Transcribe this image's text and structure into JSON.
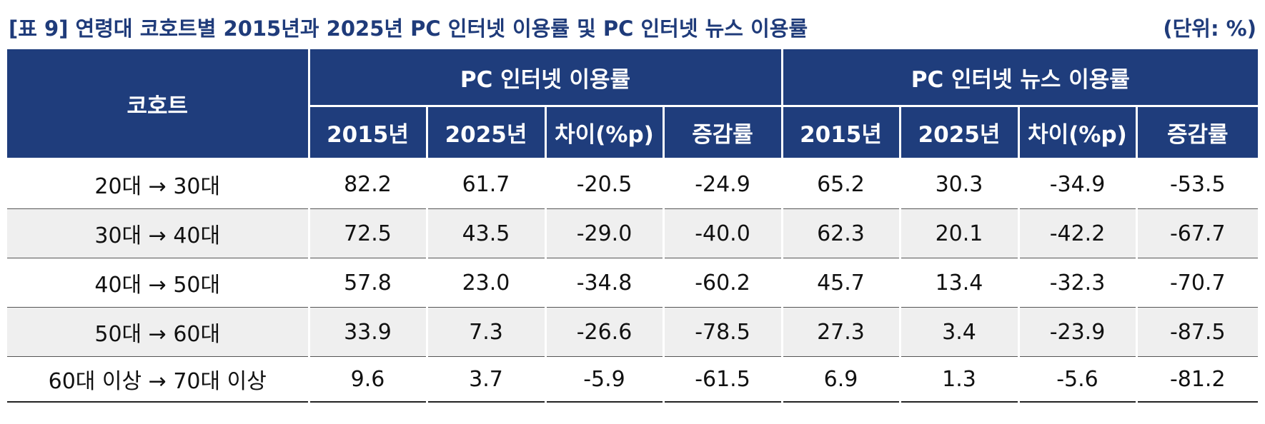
{
  "title": "[표 9] 연령대 코호트별 2015년과 2025년 PC 인터넷 이용률 및 PC 인터넷 뉴스 이용률",
  "unit": "(단위: %)",
  "header": {
    "cohort": "코호트",
    "group1": "PC 인터넷 이용률",
    "group2": "PC 인터넷 뉴스 이용률",
    "sub": [
      "2015년",
      "2025년",
      "차이(%p)",
      "증감률",
      "2015년",
      "2025년",
      "차이(%p)",
      "증감률"
    ]
  },
  "rows": [
    {
      "cohort": "20대 → 30대",
      "cells": [
        "82.2",
        "61.7",
        "-20.5",
        "-24.9",
        "65.2",
        "30.3",
        "-34.9",
        "-53.5"
      ]
    },
    {
      "cohort": "30대 → 40대",
      "cells": [
        "72.5",
        "43.5",
        "-29.0",
        "-40.0",
        "62.3",
        "20.1",
        "-42.2",
        "-67.7"
      ]
    },
    {
      "cohort": "40대 → 50대",
      "cells": [
        "57.8",
        "23.0",
        "-34.8",
        "-60.2",
        "45.7",
        "13.4",
        "-32.3",
        "-70.7"
      ]
    },
    {
      "cohort": "50대 → 60대",
      "cells": [
        "33.9",
        "7.3",
        "-26.6",
        "-78.5",
        "27.3",
        "3.4",
        "-23.9",
        "-87.5"
      ]
    },
    {
      "cohort": "60대 이상 → 70대 이상",
      "cells": [
        "9.6",
        "3.7",
        "-5.9",
        "-61.5",
        "6.9",
        "1.3",
        "-5.6",
        "-81.2"
      ]
    }
  ],
  "colors": {
    "header_bg": "#1f3d7c",
    "title": "#1f3b7a",
    "stripe": "#efefef"
  }
}
